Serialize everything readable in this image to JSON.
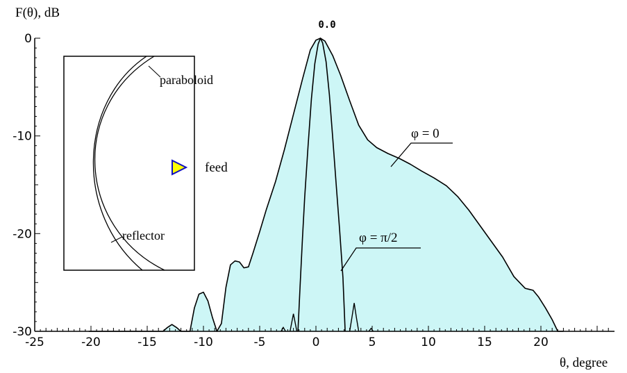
{
  "chart_data": {
    "type": "area",
    "ylabel": "F(θ), dB",
    "xlabel": "θ, degree",
    "xlim": [
      -25,
      25
    ],
    "ylim": [
      -30,
      0
    ],
    "x_ticks": [
      -25,
      -20,
      -15,
      -10,
      -5,
      0,
      5,
      10,
      15,
      20
    ],
    "x_tick_labels": [
      "-25",
      "-20",
      "-15",
      "-10",
      "-5",
      "0",
      "5",
      "10",
      "15",
      "20"
    ],
    "y_ticks": [
      0,
      -10,
      -20,
      -30
    ],
    "y_tick_labels": [
      "0",
      "-10",
      "-20",
      "-30"
    ],
    "peak_label": "0.0",
    "fill_color": "#cdf6f6",
    "series": [
      {
        "name": "φ = 0",
        "fill": true,
        "points": [
          [
            -20.2,
            -30
          ],
          [
            -19.8,
            -30
          ],
          [
            -13.6,
            -30
          ],
          [
            -13.2,
            -29.6
          ],
          [
            -12.8,
            -29.3
          ],
          [
            -12.4,
            -29.6
          ],
          [
            -12.0,
            -30
          ],
          [
            -11.2,
            -30
          ],
          [
            -10.8,
            -27.6
          ],
          [
            -10.4,
            -26.2
          ],
          [
            -10.0,
            -26.0
          ],
          [
            -9.6,
            -26.9
          ],
          [
            -9.2,
            -28.6
          ],
          [
            -8.8,
            -30
          ],
          [
            -8.4,
            -29.2
          ],
          [
            -8.0,
            -25.5
          ],
          [
            -7.6,
            -23.2
          ],
          [
            -7.2,
            -22.8
          ],
          [
            -6.8,
            -22.9
          ],
          [
            -6.4,
            -23.5
          ],
          [
            -6.0,
            -23.4
          ],
          [
            -5.6,
            -22.0
          ],
          [
            -5.0,
            -19.8
          ],
          [
            -4.4,
            -17.5
          ],
          [
            -3.6,
            -14.7
          ],
          [
            -2.8,
            -11.4
          ],
          [
            -2.0,
            -7.8
          ],
          [
            -1.2,
            -4.2
          ],
          [
            -0.5,
            -1.2
          ],
          [
            0.0,
            -0.2
          ],
          [
            0.4,
            0.0
          ],
          [
            0.8,
            -0.3
          ],
          [
            1.5,
            -1.8
          ],
          [
            2.2,
            -3.8
          ],
          [
            3.0,
            -6.4
          ],
          [
            3.8,
            -8.9
          ],
          [
            4.6,
            -10.4
          ],
          [
            5.4,
            -11.2
          ],
          [
            6.4,
            -11.8
          ],
          [
            7.4,
            -12.3
          ],
          [
            8.4,
            -12.9
          ],
          [
            9.4,
            -13.6
          ],
          [
            10.5,
            -14.3
          ],
          [
            11.6,
            -15.1
          ],
          [
            12.6,
            -16.2
          ],
          [
            13.6,
            -17.6
          ],
          [
            14.6,
            -19.2
          ],
          [
            15.6,
            -20.8
          ],
          [
            16.6,
            -22.4
          ],
          [
            17.6,
            -24.4
          ],
          [
            18.6,
            -25.6
          ],
          [
            19.3,
            -25.8
          ],
          [
            19.8,
            -26.5
          ],
          [
            20.4,
            -27.6
          ],
          [
            21.0,
            -28.8
          ],
          [
            21.5,
            -30
          ],
          [
            22.0,
            -30
          ]
        ],
        "small_lobes": [
          [
            [
              -2.3,
              -30
            ],
            [
              -2.0,
              -28.2
            ],
            [
              -1.7,
              -30
            ]
          ],
          [
            [
              -3.1,
              -30
            ],
            [
              -2.9,
              -29.6
            ],
            [
              -2.7,
              -30
            ]
          ],
          [
            [
              3.0,
              -30
            ],
            [
              3.2,
              -28.6
            ],
            [
              3.4,
              -27.1
            ],
            [
              3.6,
              -28.6
            ],
            [
              3.8,
              -30
            ]
          ],
          [
            [
              4.7,
              -30
            ],
            [
              4.9,
              -29.7
            ],
            [
              5.1,
              -30
            ]
          ]
        ]
      },
      {
        "name": "φ = π/2",
        "fill": false,
        "points": [
          [
            -1.6,
            -30
          ],
          [
            -1.4,
            -25.2
          ],
          [
            -1.2,
            -20.5
          ],
          [
            -1.0,
            -16.3
          ],
          [
            -0.7,
            -11.0
          ],
          [
            -0.4,
            -6.2
          ],
          [
            -0.1,
            -2.6
          ],
          [
            0.2,
            -0.6
          ],
          [
            0.4,
            0.0
          ],
          [
            0.6,
            -0.5
          ],
          [
            0.9,
            -2.4
          ],
          [
            1.2,
            -5.8
          ],
          [
            1.5,
            -10.3
          ],
          [
            1.8,
            -15.0
          ],
          [
            2.1,
            -19.5
          ],
          [
            2.4,
            -24.5
          ],
          [
            2.6,
            -30
          ]
        ]
      }
    ],
    "annotations": [
      {
        "text": "φ = 0",
        "target_series": "φ = 0"
      },
      {
        "text": "φ = π/2",
        "target_series": "φ = π/2"
      }
    ],
    "inset": {
      "labels": {
        "paraboloid": "paraboloid",
        "feed": "feed",
        "reflector": "reflector"
      },
      "feed_color": "#ffff00",
      "feed_outline": "#1010c0"
    }
  }
}
